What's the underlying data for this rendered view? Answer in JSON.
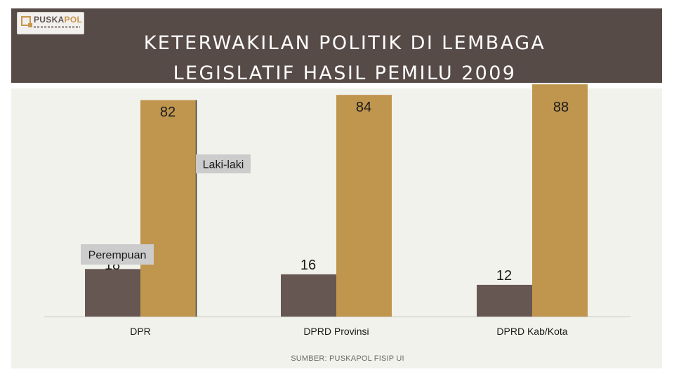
{
  "header": {
    "logo_text_1": "PUSKA",
    "logo_text_2": "POL",
    "title": "KETERWAKILAN POLITIK DI LEMBAGA\nLEGISLATIF HASIL PEMILU 2009"
  },
  "colors": {
    "header_bg": "#574b48",
    "perempuan": "#675753",
    "laki_laki": "#c0964f",
    "plot_bg": "#f2f2ec"
  },
  "chart_data": {
    "type": "bar",
    "title": "KETERWAKILAN POLITIK DI LEMBAGA LEGISLATIF HASIL PEMILU 2009",
    "categories": [
      "DPR",
      "DPRD Provinsi",
      "DPRD Kab/Kota"
    ],
    "series": [
      {
        "name": "Perempuan",
        "values": [
          18,
          16,
          12
        ],
        "labels": [
          "18",
          "16",
          "12"
        ]
      },
      {
        "name": "Laki-laki",
        "values": [
          82,
          84,
          88
        ],
        "labels": [
          "82",
          "84",
          "88"
        ]
      }
    ],
    "xlabel": "",
    "ylabel": "",
    "ylim": [
      0,
      100
    ],
    "grid": false,
    "legend": "inline callouts"
  },
  "source": "SUMBER: PUSKAPOL FISIP UI"
}
